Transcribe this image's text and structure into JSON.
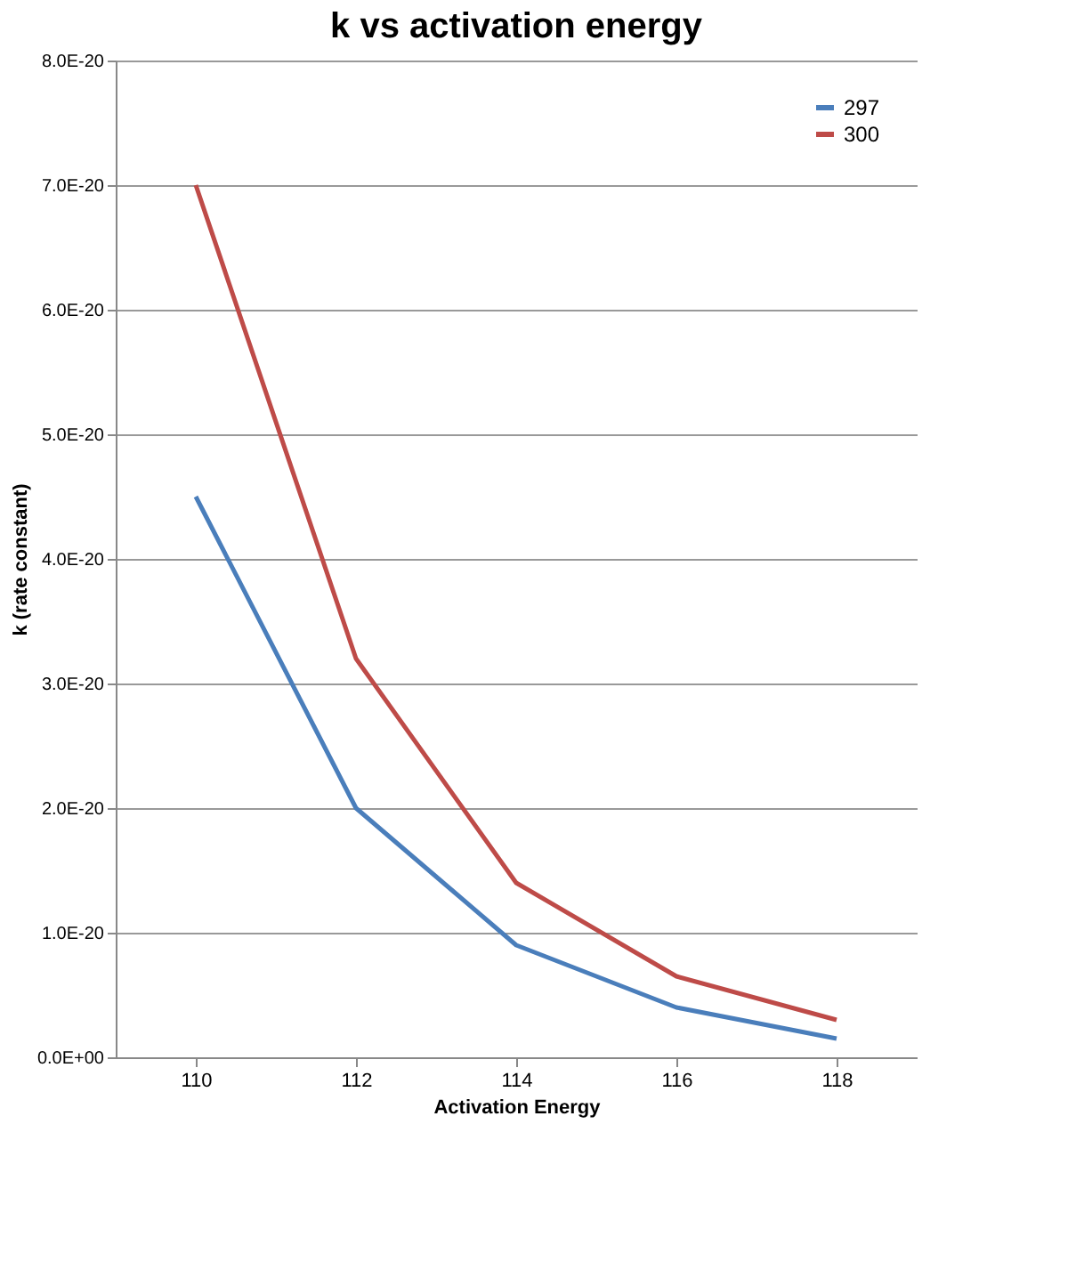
{
  "chart_data": {
    "type": "line",
    "title": "k vs activation energy",
    "xlabel": "Activation Energy",
    "ylabel": "k (rate constant)",
    "categories": [
      "110",
      "112",
      "114",
      "116",
      "118"
    ],
    "series": [
      {
        "name": "297",
        "color": "#4a7ebb",
        "values": [
          4.5e-20,
          2e-20,
          9e-21,
          4e-21,
          1.5e-21
        ]
      },
      {
        "name": "300",
        "color": "#be4b48",
        "values": [
          7e-20,
          3.2e-20,
          1.4e-20,
          6.5e-21,
          3e-21
        ]
      }
    ],
    "ylim": [
      0,
      8e-20
    ],
    "yticks": [
      {
        "value": 0,
        "label": "0.0E+00"
      },
      {
        "value": 1e-20,
        "label": "1.0E-20"
      },
      {
        "value": 2e-20,
        "label": "2.0E-20"
      },
      {
        "value": 3e-20,
        "label": "3.0E-20"
      },
      {
        "value": 4e-20,
        "label": "4.0E-20"
      },
      {
        "value": 5e-20,
        "label": "5.0E-20"
      },
      {
        "value": 6e-20,
        "label": "6.0E-20"
      },
      {
        "value": 7e-20,
        "label": "7.0E-20"
      },
      {
        "value": 8e-20,
        "label": "8.0E-20"
      }
    ],
    "grid": "y",
    "legend": "top right",
    "marker": "none",
    "line_style": "solid"
  }
}
